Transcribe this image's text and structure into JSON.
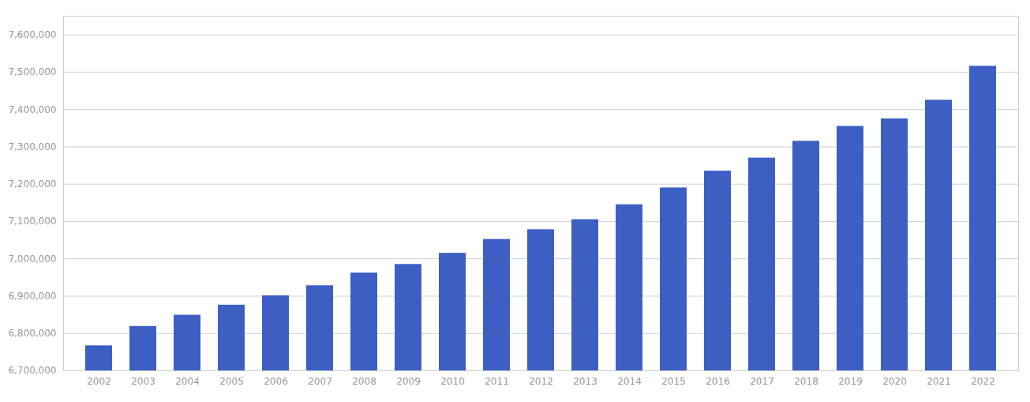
{
  "chart_data": {
    "type": "bar",
    "categories": [
      "2002",
      "2003",
      "2004",
      "2005",
      "2006",
      "2007",
      "2008",
      "2009",
      "2010",
      "2011",
      "2012",
      "2013",
      "2014",
      "2015",
      "2016",
      "2017",
      "2018",
      "2019",
      "2020",
      "2021",
      "2022"
    ],
    "values": [
      6767000,
      6819000,
      6849000,
      6876000,
      6901000,
      6928000,
      6962000,
      6985000,
      7015000,
      7052000,
      7078000,
      7105000,
      7145000,
      7190000,
      7235000,
      7270000,
      7315000,
      7355000,
      7375000,
      7425000,
      7516000
    ],
    "color": "#3d5fc4",
    "ylim": [
      6700000,
      7650000
    ],
    "yticks": [
      {
        "value": 6700000,
        "label": "6,700,000"
      },
      {
        "value": 6800000,
        "label": "6,800,000"
      },
      {
        "value": 6900000,
        "label": "6,900,000"
      },
      {
        "value": 7000000,
        "label": "7,000,000"
      },
      {
        "value": 7100000,
        "label": "7,100,000"
      },
      {
        "value": 7200000,
        "label": "7,200,000"
      },
      {
        "value": 7300000,
        "label": "7,300,000"
      },
      {
        "value": 7400000,
        "label": "7,400,000"
      },
      {
        "value": 7500000,
        "label": "7,500,000"
      },
      {
        "value": 7600000,
        "label": "7,600,000"
      }
    ],
    "grid": true
  }
}
